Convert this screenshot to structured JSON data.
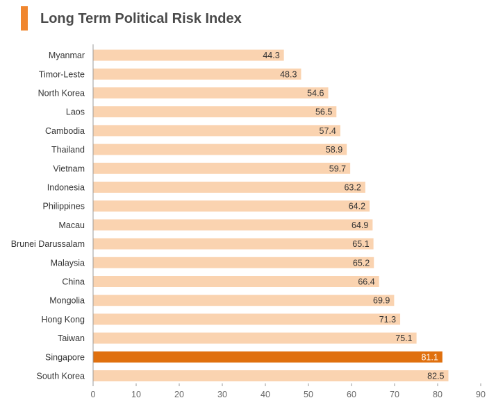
{
  "header": {
    "title": "Long Term Political Risk Index",
    "accent_color": "#f0862e"
  },
  "colors": {
    "bar": "#fad3b0",
    "highlight": "#e0700e",
    "label": "#333333",
    "axis": "#666666"
  },
  "chart_data": {
    "type": "bar",
    "orientation": "horizontal",
    "title": "Long Term Political Risk Index",
    "xlabel": "",
    "ylabel": "",
    "xlim": [
      0,
      90
    ],
    "xticks": [
      "0",
      "10",
      "20",
      "30",
      "40",
      "50",
      "60",
      "70",
      "80",
      "90"
    ],
    "grid": false,
    "legend": "none",
    "highlighted_category": "Singapore",
    "categories": [
      "Myanmar",
      "Timor-Leste",
      "North Korea",
      "Laos",
      "Cambodia",
      "Thailand",
      "Vietnam",
      "Indonesia",
      "Philippines",
      "Macau",
      "Brunei Darussalam",
      "Malaysia",
      "China",
      "Mongolia",
      "Hong Kong",
      "Taiwan",
      "Singapore",
      "South Korea"
    ],
    "values": [
      44.3,
      48.3,
      54.6,
      56.5,
      57.4,
      58.9,
      59.7,
      63.2,
      64.2,
      64.9,
      65.1,
      65.2,
      66.4,
      69.9,
      71.3,
      75.1,
      81.1,
      82.5
    ],
    "value_labels": [
      "44.3",
      "48.3",
      "54.6",
      "56.5",
      "57.4",
      "58.9",
      "59.7",
      "63.2",
      "64.2",
      "64.9",
      "65.1",
      "65.2",
      "66.4",
      "69.9",
      "71.3",
      "75.1",
      "81.1",
      "82.5"
    ]
  }
}
